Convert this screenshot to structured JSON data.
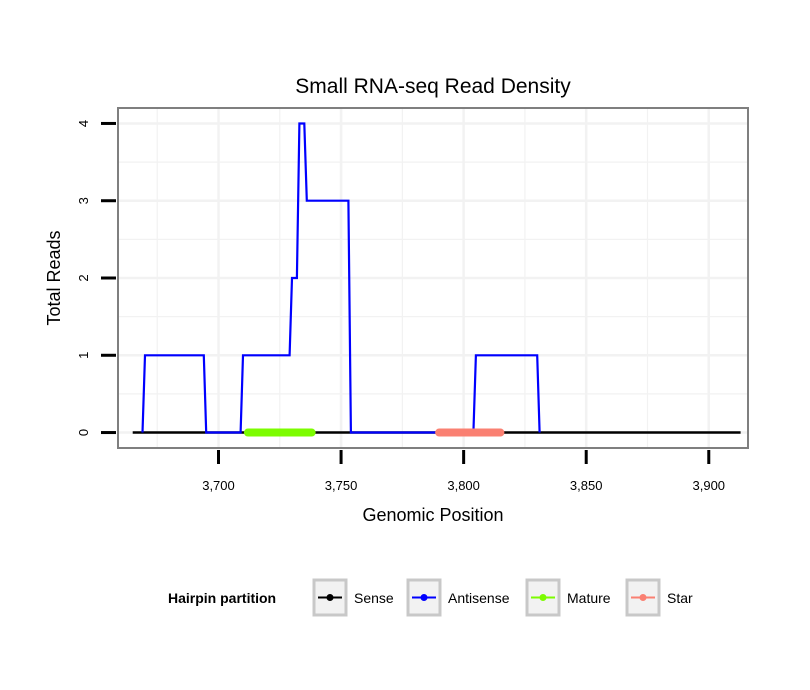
{
  "chart_data": {
    "type": "line",
    "title": "Small RNA-seq Read Density",
    "xlabel": "Genomic Position",
    "ylabel": "Total Reads",
    "xlim": [
      3659,
      3916
    ],
    "ylim": [
      -0.2,
      4.2
    ],
    "x_ticks": [
      3700,
      3750,
      3800,
      3850,
      3900
    ],
    "x_tick_labels": [
      "3,700",
      "3,750",
      "3,800",
      "3,850",
      "3,900"
    ],
    "y_ticks": [
      0,
      1,
      2,
      3,
      4
    ],
    "y_tick_labels": [
      "0",
      "1",
      "2",
      "3",
      "4"
    ],
    "grid": true,
    "legend_position": "bottom",
    "legend_title": "Hairpin partition",
    "series": [
      {
        "name": "Sense",
        "color": "#000000",
        "x": [
          3665,
          3913
        ],
        "y": [
          0,
          0
        ]
      },
      {
        "name": "Antisense",
        "color": "#0000ff",
        "x": [
          3669,
          3670,
          3694,
          3695,
          3709,
          3710,
          3729,
          3730,
          3732,
          3733,
          3735,
          3736,
          3753,
          3754,
          3804,
          3805,
          3830,
          3831
        ],
        "y": [
          0,
          1,
          1,
          0,
          0,
          1,
          1,
          2,
          2,
          4,
          4,
          3,
          3,
          0,
          0,
          1,
          1,
          0
        ]
      }
    ],
    "regions": [
      {
        "name": "Mature",
        "color": "#7cfc00",
        "start": 3712,
        "end": 3738
      },
      {
        "name": "Star",
        "color": "#fa8072",
        "start": 3790,
        "end": 3815
      }
    ],
    "legend": [
      {
        "label": "Sense",
        "color": "#000000"
      },
      {
        "label": "Antisense",
        "color": "#0000ff"
      },
      {
        "label": "Mature",
        "color": "#7cfc00"
      },
      {
        "label": "Star",
        "color": "#fa8072"
      }
    ]
  }
}
